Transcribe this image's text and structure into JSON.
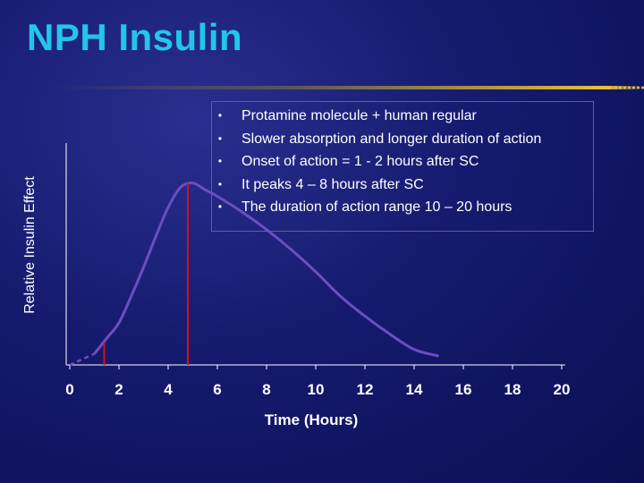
{
  "title": "NPH Insulin",
  "bullets": [
    "Protamine molecule + human regular",
    "Slower absorption and longer duration of action",
    "Onset of action   =  1 - 2 hours after SC",
    " It peaks 4 – 8 hours after SC",
    "The duration of action range  10 – 20 hours"
  ],
  "colors": {
    "title": "#22c6e8",
    "curve": "#6a4fc0",
    "marker": "#d0121c",
    "axis": "#ffffff",
    "background": "#151a6e"
  },
  "chart_data": {
    "type": "line",
    "xlabel": "Time (Hours)",
    "ylabel": "Relative Insulin Effect",
    "x_ticks": [
      0,
      2,
      4,
      6,
      8,
      10,
      12,
      14,
      16,
      18,
      20
    ],
    "xlim": [
      0,
      20
    ],
    "ylim": [
      0,
      1
    ],
    "grid": false,
    "series": [
      {
        "x": [
          1.0,
          1.5,
          2.0,
          2.5,
          3.0,
          3.5,
          4.0,
          4.5,
          5.0,
          5.5,
          6.0,
          7.0,
          8.0,
          9.0,
          10.0,
          11.0,
          12.0,
          13.0,
          14.0,
          15.0
        ],
        "y": [
          0.05,
          0.12,
          0.19,
          0.31,
          0.44,
          0.58,
          0.71,
          0.8,
          0.82,
          0.79,
          0.76,
          0.69,
          0.61,
          0.52,
          0.42,
          0.31,
          0.22,
          0.14,
          0.07,
          0.04
        ]
      }
    ],
    "extension_dashed": {
      "x": [
        0.0,
        1.0
      ],
      "y": [
        0.0,
        0.05
      ]
    },
    "markers": [
      {
        "x": 1.4,
        "y": 0.1
      },
      {
        "x": 4.8,
        "y": 0.82
      }
    ]
  }
}
